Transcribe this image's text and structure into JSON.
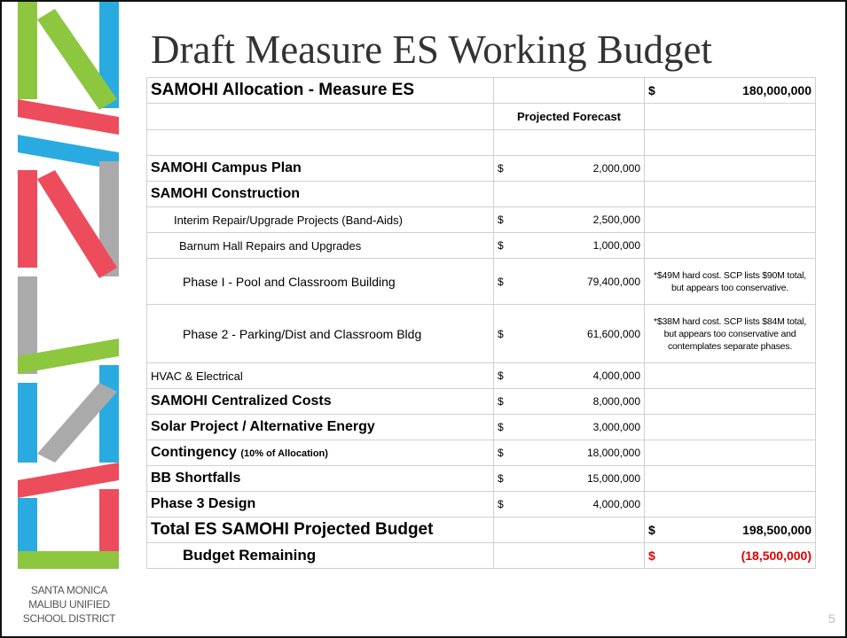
{
  "header": {
    "title": "Draft Measure ES Working Budget"
  },
  "table": {
    "rows": [
      {
        "label": "SAMOHI Allocation - Measure ES",
        "total_currency": "$",
        "total": "180,000,000"
      },
      {
        "forecast_header": "Projected Forecast"
      },
      {
        "label": "SAMOHI Campus Plan",
        "currency": "$",
        "forecast": "2,000,000"
      },
      {
        "label": "SAMOHI Construction"
      },
      {
        "label": "Interim Repair/Upgrade Projects (Band-Aids)",
        "currency": "$",
        "forecast": "2,500,000"
      },
      {
        "label": "Barnum Hall Repairs and Upgrades",
        "currency": "$",
        "forecast": "1,000,000"
      },
      {
        "label": "Phase I - Pool and Classroom Building",
        "currency": "$",
        "forecast": "79,400,000",
        "note": "*$49M hard cost.  SCP lists $90M total, but appears too conservative."
      },
      {
        "label": "Phase 2 - Parking/Dist and Classroom Bldg",
        "currency": "$",
        "forecast": "61,600,000",
        "note": "*$38M hard cost.  SCP lists $84M total, but appears too conservative and contemplates separate phases."
      },
      {
        "label": "HVAC & Electrical",
        "currency": "$",
        "forecast": "4,000,000"
      },
      {
        "label": "SAMOHI Centralized Costs",
        "currency": "$",
        "forecast": "8,000,000"
      },
      {
        "label": "Solar Project / Alternative Energy",
        "currency": "$",
        "forecast": "3,000,000"
      },
      {
        "label": "Contingency",
        "label_note": "(10% of Allocation)",
        "currency": "$",
        "forecast": "18,000,000"
      },
      {
        "label": "BB Shortfalls",
        "currency": "$",
        "forecast": "15,000,000"
      },
      {
        "label": "Phase 3 Design",
        "currency": "$",
        "forecast": "4,000,000"
      },
      {
        "label": "Total ES SAMOHI Projected Budget",
        "total_currency": "$",
        "total": "198,500,000"
      },
      {
        "label": "Budget Remaining",
        "total_currency": "$",
        "total": "(18,500,000)"
      }
    ]
  },
  "footer": {
    "district": [
      "SANTA MONICA",
      "MALIBU UNIFIED",
      "SCHOOL DISTRICT"
    ],
    "page": "5"
  }
}
